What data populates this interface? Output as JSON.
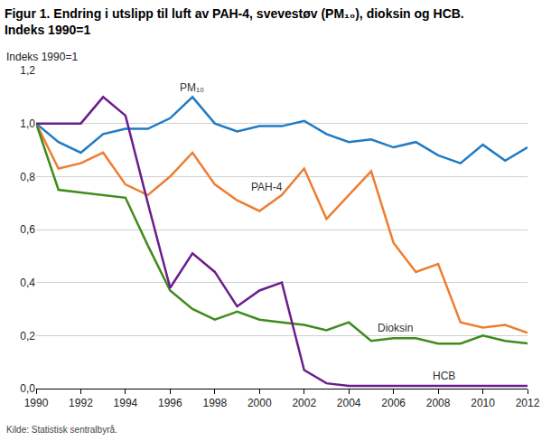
{
  "chart_data": {
    "type": "line",
    "title": "Figur 1. Endring i utslipp til luft av PAH-4, svevestøv (PM₁₀), dioksin og HCB.\nIndeks 1990=1",
    "y_label": "Indeks 1990=1",
    "source": "Kilde: Statistisk sentralbyrå.",
    "x": [
      1990,
      1991,
      1992,
      1993,
      1994,
      1995,
      1996,
      1997,
      1998,
      1999,
      2000,
      2001,
      2002,
      2003,
      2004,
      2005,
      2006,
      2007,
      2008,
      2009,
      2010,
      2011,
      2012
    ],
    "series": [
      {
        "name": "PM₁₀",
        "color": "#1f7bc4",
        "values": [
          1.0,
          0.93,
          0.89,
          0.96,
          0.98,
          0.98,
          1.02,
          1.1,
          1.0,
          0.97,
          0.99,
          0.99,
          1.01,
          0.96,
          0.93,
          0.94,
          0.91,
          0.93,
          0.88,
          0.85,
          0.92,
          0.86,
          0.91
        ]
      },
      {
        "name": "PAH-4",
        "color": "#ee7d31",
        "values": [
          1.0,
          0.83,
          0.85,
          0.89,
          0.77,
          0.73,
          0.8,
          0.89,
          0.77,
          0.71,
          0.67,
          0.73,
          0.83,
          0.64,
          0.73,
          0.82,
          0.55,
          0.44,
          0.47,
          0.25,
          0.23,
          0.24,
          0.21
        ]
      },
      {
        "name": "Dioksin",
        "color": "#3f8b1c",
        "values": [
          1.0,
          0.75,
          0.74,
          0.73,
          0.72,
          0.54,
          0.37,
          0.3,
          0.26,
          0.29,
          0.26,
          0.25,
          0.24,
          0.22,
          0.25,
          0.18,
          0.19,
          0.19,
          0.17,
          0.17,
          0.2,
          0.18,
          0.17
        ]
      },
      {
        "name": "HCB",
        "color": "#6b1d8c",
        "values": [
          1.0,
          1.0,
          1.0,
          1.1,
          1.03,
          0.7,
          0.38,
          0.51,
          0.44,
          0.31,
          0.37,
          0.4,
          0.07,
          0.02,
          0.01,
          0.01,
          0.01,
          0.01,
          0.01,
          0.01,
          0.01,
          0.01,
          0.01
        ]
      }
    ],
    "xlim": [
      1990,
      2012
    ],
    "xticks": [
      1990,
      1992,
      1994,
      1996,
      1998,
      2000,
      2002,
      2004,
      2006,
      2008,
      2010,
      2012
    ],
    "ylim": [
      0,
      1.2
    ],
    "yticks": [
      {
        "value": 0,
        "label": "0,0"
      },
      {
        "value": 0.2,
        "label": "0,2"
      },
      {
        "value": 0.4,
        "label": "0,4"
      },
      {
        "value": 0.6,
        "label": "0,6"
      },
      {
        "value": 0.8,
        "label": "0,8"
      },
      {
        "value": 1.0,
        "label": "1,0"
      },
      {
        "value": 1.2,
        "label": "1,2"
      }
    ],
    "grid": true,
    "legend": "none"
  }
}
